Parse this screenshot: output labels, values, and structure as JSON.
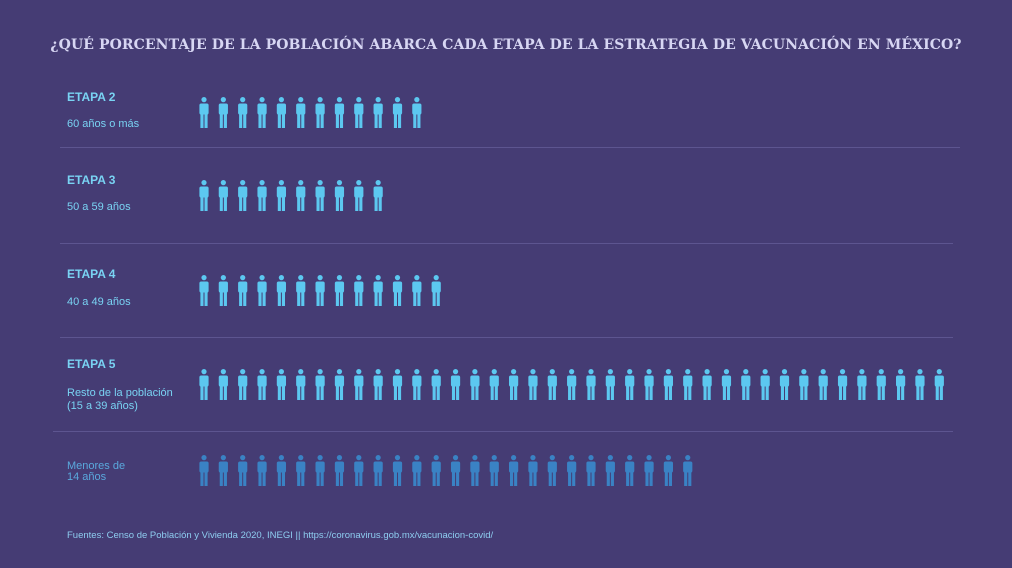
{
  "title": "¿QUÉ PORCENTAJE DE LA POBLACIÓN ABARCA CADA ETAPA DE LA ESTRATEGIA DE VACUNACIÓN EN MÉXICO?",
  "footer": "Fuentes:  Censo de Población y Vivienda 2020, INEGI ||  https://coronavirus.gob.mx/vacunacion-covid/",
  "colors": {
    "background": "#453c74",
    "icon_primary": "#5cc8f0",
    "icon_secondary": "#3a82c4",
    "label": "#79d3f3"
  },
  "chart_data": {
    "type": "pictograph",
    "icon": "person-icon",
    "title": "¿QUÉ PORCENTAJE DE LA POBLACIÓN ABARCA CADA ETAPA DE LA ESTRATEGIA DE VACUNACIÓN EN MÉXICO?",
    "categories": [
      "ETAPA 2",
      "ETAPA 3",
      "ETAPA 4",
      "ETAPA 5",
      "Menores de 14 años"
    ],
    "rows": [
      {
        "name": "ETAPA 2",
        "sublabel": "60 años o más",
        "icons": 12
      },
      {
        "name": "ETAPA 3",
        "sublabel": "50 a 59 años",
        "icons": 10
      },
      {
        "name": "ETAPA 4",
        "sublabel": "40 a 49 años",
        "icons": 13
      },
      {
        "name": "ETAPA 5",
        "sublabel_line1": "Resto de la población",
        "sublabel_line2": "(15 a 39 años)",
        "icons": 39
      },
      {
        "name_line1": "Menores de",
        "name_line2": "14 años",
        "icons": 26
      }
    ]
  }
}
